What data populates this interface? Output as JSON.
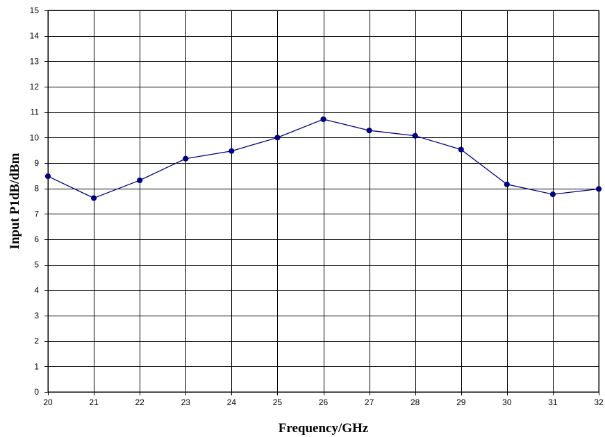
{
  "chart_data": {
    "type": "line",
    "title": "",
    "xlabel": "Frequency/GHz",
    "ylabel": "Input P1dB/dBm",
    "x": [
      20,
      21,
      22,
      23,
      24,
      25,
      26,
      27,
      28,
      29,
      30,
      31,
      32
    ],
    "series": [
      {
        "values": [
          8.48,
          7.62,
          8.32,
          9.17,
          9.47,
          10.0,
          10.72,
          10.28,
          10.07,
          9.53,
          8.16,
          7.77,
          7.98
        ],
        "color": "#000080"
      }
    ],
    "xlim": [
      20,
      32
    ],
    "ylim": [
      0,
      15
    ],
    "x_ticks": [
      "20",
      "21",
      "22",
      "23",
      "24",
      "25",
      "26",
      "27",
      "28",
      "29",
      "30",
      "31",
      "32"
    ],
    "y_ticks": [
      "0",
      "1",
      "2",
      "3",
      "4",
      "5",
      "6",
      "7",
      "8",
      "9",
      "10",
      "11",
      "12",
      "13",
      "14",
      "15"
    ],
    "grid": true,
    "legend": "none",
    "marker": "circle"
  }
}
